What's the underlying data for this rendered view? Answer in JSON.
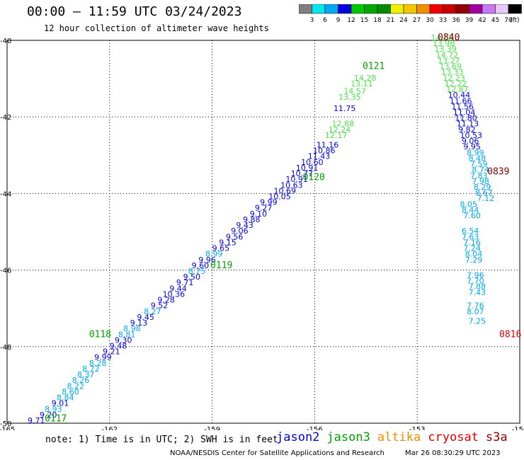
{
  "header": {
    "title": "00:00 – 11:59 UTC 03/24/2023",
    "subtitle": "12 hour collection of altimeter wave heights"
  },
  "colorbar": {
    "ticks": [
      "3",
      "6",
      "9",
      "12",
      "15",
      "18",
      "21",
      "24",
      "27",
      "30",
      "33",
      "36",
      "39",
      "42",
      "45",
      "70",
      "(ft)"
    ],
    "colors": [
      "#7f7f7f",
      "#00e8f0",
      "#00a8f0",
      "#0000e0",
      "#00c800",
      "#00a800",
      "#008c00",
      "#f0f000",
      "#f0c800",
      "#f09000",
      "#f00000",
      "#c80000",
      "#900000",
      "#a000a0",
      "#c878f0",
      "#e8c8f8",
      "#000000"
    ]
  },
  "chart_data": {
    "type": "scatter",
    "title": "00:00 – 11:59 UTC 03/24/2023",
    "subtitle": "12 hour collection of altimeter wave heights",
    "xlim": [
      -165,
      -150
    ],
    "ylim": [
      -50,
      -40
    ],
    "xticks": [
      "-165",
      "-162",
      "-159",
      "-156",
      "-153",
      "-150"
    ],
    "yticks": [
      "-40",
      "-42",
      "-44",
      "-46",
      "-48",
      "-50"
    ],
    "grid": true,
    "colors": {
      "light_blue": "#00a8f0",
      "blue": "#0000e0",
      "light_green": "#50e050",
      "green": "#00a000",
      "dark_red": "#800000",
      "red": "#e00000"
    },
    "time_labels": [
      {
        "text": "0117",
        "x": -163.9,
        "y": -49.95,
        "color": "green"
      },
      {
        "text": "0118",
        "x": -162.6,
        "y": -47.75,
        "color": "green"
      },
      {
        "text": "0119",
        "x": -159.05,
        "y": -45.95,
        "color": "green"
      },
      {
        "text": "0120",
        "x": -156.35,
        "y": -43.65,
        "color": "green"
      },
      {
        "text": "0121",
        "x": -154.6,
        "y": -40.75,
        "color": "green"
      },
      {
        "text": "0840",
        "x": -152.4,
        "y": -40.0,
        "color": "dark_red"
      },
      {
        "text": "0839",
        "x": -150.95,
        "y": -43.5,
        "color": "dark_red"
      },
      {
        "text": "0816",
        "x": -150.6,
        "y": -47.75,
        "color": "red"
      }
    ],
    "series": [
      {
        "name": "jason2",
        "color": "blue",
        "points": [
          {
            "x": -164.4,
            "y": -50.0,
            "v": "9.71",
            "c": "blue"
          },
          {
            "x": -164.05,
            "y": -49.85,
            "v": "9.20",
            "c": "blue"
          },
          {
            "x": -163.9,
            "y": -49.7,
            "v": "8.93",
            "c": "light_blue"
          },
          {
            "x": -163.7,
            "y": -49.55,
            "v": "9.01",
            "c": "blue"
          },
          {
            "x": -163.55,
            "y": -49.4,
            "v": "8.84",
            "c": "light_blue"
          },
          {
            "x": -163.4,
            "y": -49.25,
            "v": "8.60",
            "c": "light_blue"
          },
          {
            "x": -163.25,
            "y": -49.1,
            "v": "8.22",
            "c": "light_blue"
          },
          {
            "x": -163.1,
            "y": -48.95,
            "v": "8.26",
            "c": "light_blue"
          },
          {
            "x": -162.95,
            "y": -48.8,
            "v": "8.37",
            "c": "light_blue"
          },
          {
            "x": -162.8,
            "y": -48.65,
            "v": "8.72",
            "c": "light_blue"
          },
          {
            "x": -162.6,
            "y": -48.5,
            "v": "8.28",
            "c": "light_blue"
          },
          {
            "x": -162.45,
            "y": -48.35,
            "v": "9.99",
            "c": "blue"
          },
          {
            "x": -162.2,
            "y": -48.2,
            "v": "9.21",
            "c": "blue"
          },
          {
            "x": -162.0,
            "y": -48.05,
            "v": "9.48",
            "c": "blue"
          },
          {
            "x": -161.85,
            "y": -47.9,
            "v": "9.30",
            "c": "blue"
          },
          {
            "x": -161.75,
            "y": -47.75,
            "v": "8.81",
            "c": "light_blue"
          },
          {
            "x": -161.6,
            "y": -47.6,
            "v": "8.98",
            "c": "light_blue"
          },
          {
            "x": -161.4,
            "y": -47.45,
            "v": "9.13",
            "c": "blue"
          },
          {
            "x": -161.2,
            "y": -47.3,
            "v": "9.45",
            "c": "blue"
          },
          {
            "x": -161.0,
            "y": -47.15,
            "v": "8.27",
            "c": "light_blue"
          },
          {
            "x": -160.8,
            "y": -47.0,
            "v": "9.52",
            "c": "blue"
          },
          {
            "x": -160.6,
            "y": -46.85,
            "v": "9.28",
            "c": "blue"
          },
          {
            "x": -160.45,
            "y": -46.7,
            "v": "10.36",
            "c": "blue"
          },
          {
            "x": -160.25,
            "y": -46.55,
            "v": "9.44",
            "c": "blue"
          },
          {
            "x": -160.05,
            "y": -46.4,
            "v": "9.71",
            "c": "blue"
          },
          {
            "x": -159.85,
            "y": -46.25,
            "v": "9.50",
            "c": "blue"
          },
          {
            "x": -159.7,
            "y": -46.1,
            "v": "8.75",
            "c": "light_blue"
          },
          {
            "x": -159.6,
            "y": -45.95,
            "v": "9.60",
            "c": "blue"
          },
          {
            "x": -159.4,
            "y": -45.8,
            "v": "9.96",
            "c": "blue"
          },
          {
            "x": -159.2,
            "y": -45.65,
            "v": "8.99",
            "c": "light_blue"
          },
          {
            "x": -159.0,
            "y": -45.5,
            "v": "9.65",
            "c": "blue"
          },
          {
            "x": -158.8,
            "y": -45.35,
            "v": "9.15",
            "c": "blue"
          },
          {
            "x": -158.6,
            "y": -45.2,
            "v": "9.56",
            "c": "blue"
          },
          {
            "x": -158.45,
            "y": -45.05,
            "v": "9.06",
            "c": "blue"
          },
          {
            "x": -158.3,
            "y": -44.9,
            "v": "9.43",
            "c": "blue"
          },
          {
            "x": -158.1,
            "y": -44.75,
            "v": "9.88",
            "c": "blue"
          },
          {
            "x": -157.9,
            "y": -44.6,
            "v": "9.10",
            "c": "blue"
          },
          {
            "x": -157.75,
            "y": -44.45,
            "v": "9.27",
            "c": "blue"
          },
          {
            "x": -157.6,
            "y": -44.3,
            "v": "9.99",
            "c": "blue"
          },
          {
            "x": -157.35,
            "y": -44.15,
            "v": "10.05",
            "c": "blue"
          },
          {
            "x": -157.2,
            "y": -44.0,
            "v": "10.69",
            "c": "blue"
          },
          {
            "x": -157.0,
            "y": -43.85,
            "v": "10.63",
            "c": "blue"
          },
          {
            "x": -156.85,
            "y": -43.7,
            "v": "10.91",
            "c": "blue"
          },
          {
            "x": -156.7,
            "y": -43.55,
            "v": "10.77",
            "c": "blue"
          },
          {
            "x": -156.55,
            "y": -43.4,
            "v": "10.91",
            "c": "blue"
          },
          {
            "x": -156.4,
            "y": -43.25,
            "v": "10.60",
            "c": "blue"
          },
          {
            "x": -156.2,
            "y": -43.1,
            "v": "11.43",
            "c": "blue"
          },
          {
            "x": -156.05,
            "y": -42.95,
            "v": "10.86",
            "c": "blue"
          },
          {
            "x": -155.95,
            "y": -42.8,
            "v": "11.16",
            "c": "blue"
          },
          {
            "x": -155.45,
            "y": -41.85,
            "v": "11.75",
            "c": "blue"
          }
        ]
      },
      {
        "name": "jason3",
        "color": "green",
        "points": [
          {
            "x": -155.7,
            "y": -42.55,
            "v": "12.17",
            "c": "light_green"
          },
          {
            "x": -155.6,
            "y": -42.4,
            "v": "12.24",
            "c": "light_green"
          },
          {
            "x": -155.5,
            "y": -42.25,
            "v": "12.88",
            "c": "light_green"
          },
          {
            "x": -155.3,
            "y": -41.55,
            "v": "13.35",
            "c": "light_green"
          },
          {
            "x": -155.15,
            "y": -41.4,
            "v": "14.57",
            "c": "light_green"
          },
          {
            "x": -154.95,
            "y": -41.2,
            "v": "13.11",
            "c": "light_green"
          },
          {
            "x": -154.85,
            "y": -41.05,
            "v": "14.28",
            "c": "light_green"
          },
          {
            "x": -152.6,
            "y": -40.0,
            "v": "14.12",
            "c": "light_green"
          },
          {
            "x": -152.55,
            "y": -40.15,
            "v": "13.98",
            "c": "light_green"
          },
          {
            "x": -152.5,
            "y": -40.3,
            "v": "13.39",
            "c": "light_green"
          },
          {
            "x": -152.45,
            "y": -40.45,
            "v": "14.72",
            "c": "light_green"
          },
          {
            "x": -152.4,
            "y": -40.6,
            "v": "13.27",
            "c": "light_green"
          },
          {
            "x": -152.35,
            "y": -40.75,
            "v": "13.69",
            "c": "light_green"
          },
          {
            "x": -152.3,
            "y": -40.9,
            "v": "13.33",
            "c": "light_green"
          },
          {
            "x": -152.25,
            "y": -41.05,
            "v": "12.23",
            "c": "light_green"
          },
          {
            "x": -152.2,
            "y": -41.2,
            "v": "12.22",
            "c": "light_green"
          },
          {
            "x": -152.15,
            "y": -41.35,
            "v": "12.87",
            "c": "light_green"
          },
          {
            "x": -152.1,
            "y": -41.5,
            "v": "10.44",
            "c": "blue"
          },
          {
            "x": -152.05,
            "y": -41.65,
            "v": "11.66",
            "c": "blue"
          },
          {
            "x": -152.0,
            "y": -41.8,
            "v": "11.56",
            "c": "blue"
          },
          {
            "x": -151.95,
            "y": -41.95,
            "v": "11.04",
            "c": "blue"
          },
          {
            "x": -151.9,
            "y": -42.1,
            "v": "11.80",
            "c": "blue"
          },
          {
            "x": -151.85,
            "y": -42.25,
            "v": "11.13",
            "c": "blue"
          },
          {
            "x": -151.8,
            "y": -42.4,
            "v": "9.82",
            "c": "blue"
          },
          {
            "x": -151.75,
            "y": -42.55,
            "v": "10.53",
            "c": "blue"
          },
          {
            "x": -151.7,
            "y": -42.7,
            "v": "9.06",
            "c": "blue"
          },
          {
            "x": -151.65,
            "y": -42.85,
            "v": "9.95",
            "c": "blue"
          },
          {
            "x": -151.55,
            "y": -43.0,
            "v": "8.99",
            "c": "light_blue"
          },
          {
            "x": -151.5,
            "y": -43.15,
            "v": "8.48",
            "c": "light_blue"
          },
          {
            "x": -151.45,
            "y": -43.3,
            "v": "7.59",
            "c": "light_blue"
          },
          {
            "x": -151.4,
            "y": -43.45,
            "v": "8.74",
            "c": "light_blue"
          },
          {
            "x": -151.45,
            "y": -43.6,
            "v": "7.83",
            "c": "light_blue"
          },
          {
            "x": -151.4,
            "y": -43.75,
            "v": "7.98",
            "c": "light_blue"
          },
          {
            "x": -151.35,
            "y": -43.9,
            "v": "8.29",
            "c": "light_blue"
          },
          {
            "x": -151.3,
            "y": -44.05,
            "v": "8.67",
            "c": "light_blue"
          },
          {
            "x": -151.25,
            "y": -44.2,
            "v": "7.12",
            "c": "light_blue"
          },
          {
            "x": -151.75,
            "y": -44.35,
            "v": "8.05",
            "c": "light_blue"
          },
          {
            "x": -151.7,
            "y": -44.5,
            "v": "8.44",
            "c": "light_blue"
          },
          {
            "x": -151.65,
            "y": -44.65,
            "v": "7.60",
            "c": "light_blue"
          },
          {
            "x": -151.7,
            "y": -45.05,
            "v": "6.54",
            "c": "light_blue"
          },
          {
            "x": -151.7,
            "y": -45.2,
            "v": "7.63",
            "c": "light_blue"
          },
          {
            "x": -151.65,
            "y": -45.35,
            "v": "7.16",
            "c": "light_blue"
          },
          {
            "x": -151.65,
            "y": -45.5,
            "v": "7.24",
            "c": "light_blue"
          },
          {
            "x": -151.6,
            "y": -45.65,
            "v": "8.04",
            "c": "light_blue"
          },
          {
            "x": -151.6,
            "y": -45.8,
            "v": "7.29",
            "c": "light_blue"
          },
          {
            "x": -151.55,
            "y": -46.2,
            "v": "7.96",
            "c": "light_blue"
          },
          {
            "x": -151.55,
            "y": -46.35,
            "v": "7.70",
            "c": "light_blue"
          },
          {
            "x": -151.5,
            "y": -46.5,
            "v": "7.88",
            "c": "light_blue"
          },
          {
            "x": -151.5,
            "y": -46.65,
            "v": "7.43",
            "c": "light_blue"
          },
          {
            "x": -151.55,
            "y": -47.0,
            "v": "7.76",
            "c": "light_blue"
          },
          {
            "x": -151.55,
            "y": -47.15,
            "v": "8.07",
            "c": "light_blue"
          },
          {
            "x": -151.5,
            "y": -47.4,
            "v": "7.25",
            "c": "light_blue"
          }
        ]
      },
      {
        "name": "altika",
        "color": "#f09000",
        "points": []
      },
      {
        "name": "cryosat",
        "color": "#e00000",
        "points": []
      },
      {
        "name": "s3a",
        "color": "#900000",
        "points": []
      }
    ],
    "legend_placement": "bottom"
  },
  "notes": {
    "text": "note: 1) Time is in UTC; 2) SWH is in feet",
    "satellites": [
      {
        "name": "jason2",
        "color": "#0000e0"
      },
      {
        "name": "jason3",
        "color": "#00a000"
      },
      {
        "name": "altika",
        "color": "#f09000"
      },
      {
        "name": "cryosat",
        "color": "#e00000"
      },
      {
        "name": "s3a",
        "color": "#900000"
      }
    ]
  },
  "footer": {
    "source": "NOAA/NESDIS Center for Satellite Applications and Research",
    "timestamp": "Mar 26 08:30:29 UTC 2023"
  }
}
